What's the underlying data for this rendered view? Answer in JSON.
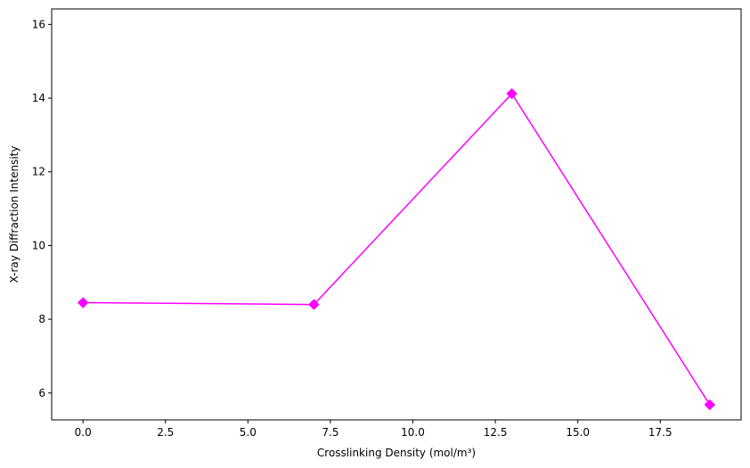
{
  "chart_data": {
    "type": "line",
    "title": "",
    "xlabel": "Crosslinking Density (mol/m³)",
    "ylabel": "X-ray Diffraction Intensity",
    "x": [
      0,
      7,
      13,
      19
    ],
    "series": [
      {
        "name": "",
        "values": [
          8.45,
          8.4,
          14.12,
          5.68
        ],
        "color": "#ff00ff",
        "marker": "diamond"
      }
    ],
    "xlim": [
      -0.95,
      19.95
    ],
    "ylim": [
      5.27,
      16.42
    ],
    "xticks": [
      0,
      2.5,
      5,
      7.5,
      10,
      12.5,
      15,
      17.5
    ],
    "xtick_labels": [
      "0.0",
      "2.5",
      "5.0",
      "7.5",
      "10.0",
      "12.5",
      "15.0",
      "17.5"
    ],
    "yticks": [
      6,
      8,
      10,
      12,
      14,
      16
    ],
    "ytick_labels": [
      "6",
      "8",
      "10",
      "12",
      "14",
      "16"
    ],
    "grid": false,
    "legend": "none"
  }
}
